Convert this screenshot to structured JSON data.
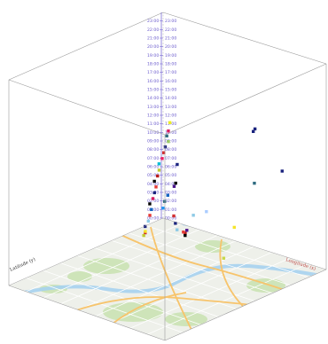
{
  "chart_data": {
    "type": "scatter",
    "projection": "3d-space-time-cube",
    "title": "",
    "xlabel": "Longitude (x)",
    "ylabel": "Latitude (y)",
    "zlabel": "",
    "time_ticks": [
      "00:00",
      "01:00",
      "02:00",
      "03:00",
      "04:00",
      "05:00",
      "06:00",
      "07:00",
      "08:00",
      "09:00",
      "10:00",
      "11:00",
      "12:00",
      "13:00",
      "14:00",
      "15:00",
      "16:00",
      "17:00",
      "18:00",
      "19:00",
      "20:00",
      "21:00",
      "22:00",
      "23:00"
    ],
    "time_range_hours": [
      0,
      24
    ],
    "base_layer": "street-map",
    "colors": {
      "frame": "#9a9a9a",
      "time_axis": "#6a5acd",
      "latitude_label": "#333333",
      "longitude_label": "#c0504d"
    },
    "points": [
      {
        "x": 0.62,
        "y": 0.06,
        "t": 14.6,
        "color": "#1a237e"
      },
      {
        "x": 0.6,
        "y": 0.05,
        "t": 14.1,
        "color": "#1a237e"
      },
      {
        "x": 0.9,
        "y": 0.18,
        "t": 12.3,
        "color": "#1a237e"
      },
      {
        "x": 0.9,
        "y": 0.36,
        "t": 12.3,
        "color": "#2e6b80"
      },
      {
        "x": 0.72,
        "y": 0.3,
        "t": 5.6,
        "color": "#f5e52a"
      },
      {
        "x": 0.92,
        "y": 0.58,
        "t": 5.4,
        "color": "#c8d84a"
      },
      {
        "x": 0.36,
        "y": 0.1,
        "t": 3.7,
        "color": "#aaccff"
      },
      {
        "x": 0.28,
        "y": 0.1,
        "t": 2.8,
        "color": "#8ecae6"
      },
      {
        "x": 0.2,
        "y": 0.12,
        "t": 8.4,
        "color": "#1a237e"
      },
      {
        "x": 0.2,
        "y": 0.13,
        "t": 6.3,
        "color": "#000000"
      },
      {
        "x": 0.2,
        "y": 0.14,
        "t": 6.0,
        "color": "#4a148c"
      },
      {
        "x": 0.18,
        "y": 0.16,
        "t": 5.0,
        "color": "#1565c0"
      },
      {
        "x": 0.17,
        "y": 0.17,
        "t": 4.3,
        "color": "#2e6b80"
      },
      {
        "x": 0.17,
        "y": 0.18,
        "t": 3.6,
        "color": "#2196f3"
      },
      {
        "x": 0.24,
        "y": 0.1,
        "t": 0.8,
        "color": "#4a148c"
      },
      {
        "x": 0.23,
        "y": 0.1,
        "t": 0.4,
        "color": "#b71c1c"
      },
      {
        "x": 0.22,
        "y": 0.09,
        "t": 0.0,
        "color": "#000000"
      },
      {
        "x": 0.2,
        "y": 0.08,
        "t": 0.2,
        "color": "#e53935"
      },
      {
        "x": 0.18,
        "y": 0.1,
        "t": 0.5,
        "color": "#8ecae6"
      },
      {
        "x": 0.17,
        "y": 0.1,
        "t": 1.2,
        "color": "#1a237e"
      },
      {
        "x": 0.16,
        "y": 0.1,
        "t": 2.0,
        "color": "#d32f2f"
      },
      {
        "x": 0.07,
        "y": 0.03,
        "t": 11.8,
        "color": "#eeee22"
      },
      {
        "x": 0.07,
        "y": 0.04,
        "t": 10.9,
        "color": "#d81b60"
      },
      {
        "x": 0.07,
        "y": 0.05,
        "t": 10.4,
        "color": "#2e6b80"
      },
      {
        "x": 0.08,
        "y": 0.05,
        "t": 9.8,
        "color": "#9ccc65"
      },
      {
        "x": 0.07,
        "y": 0.06,
        "t": 9.2,
        "color": "#1a237e"
      },
      {
        "x": 0.07,
        "y": 0.07,
        "t": 8.6,
        "color": "#d32f2f"
      },
      {
        "x": 0.07,
        "y": 0.08,
        "t": 8.0,
        "color": "#e91e63"
      },
      {
        "x": 0.06,
        "y": 0.09,
        "t": 7.4,
        "color": "#00bcd4"
      },
      {
        "x": 0.07,
        "y": 0.1,
        "t": 6.8,
        "color": "#c0ca33"
      },
      {
        "x": 0.07,
        "y": 0.11,
        "t": 6.2,
        "color": "#b71c1c"
      },
      {
        "x": 0.06,
        "y": 0.12,
        "t": 5.6,
        "color": "#000000"
      },
      {
        "x": 0.07,
        "y": 0.12,
        "t": 5.0,
        "color": "#e53935"
      },
      {
        "x": 0.07,
        "y": 0.13,
        "t": 4.4,
        "color": "#1a237e"
      },
      {
        "x": 0.07,
        "y": 0.14,
        "t": 3.8,
        "color": "#d81b60"
      },
      {
        "x": 0.06,
        "y": 0.15,
        "t": 3.2,
        "color": "#000000"
      },
      {
        "x": 0.07,
        "y": 0.15,
        "t": 2.6,
        "color": "#1565c0"
      },
      {
        "x": 0.07,
        "y": 0.16,
        "t": 2.0,
        "color": "#e53935"
      },
      {
        "x": 0.07,
        "y": 0.17,
        "t": 1.4,
        "color": "#8ecae6"
      },
      {
        "x": 0.06,
        "y": 0.18,
        "t": 0.8,
        "color": "#1a237e"
      },
      {
        "x": 0.07,
        "y": 0.19,
        "t": 0.2,
        "color": "#d32f2f"
      },
      {
        "x": 0.08,
        "y": 0.2,
        "t": 0.5,
        "color": "#f5e52a"
      },
      {
        "x": 0.08,
        "y": 0.21,
        "t": 0.1,
        "color": "#c0ca33"
      }
    ]
  }
}
